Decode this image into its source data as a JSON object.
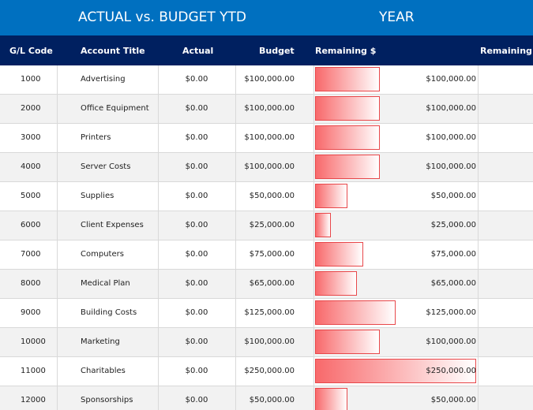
{
  "header": {
    "title": "ACTUAL vs. BUDGET YTD",
    "period": "YEAR"
  },
  "table": {
    "columns": [
      "G/L Code",
      "Account Title",
      "Actual",
      "Budget",
      "Remaining $",
      "Remaining %"
    ],
    "rows": [
      [
        "1000",
        "Advertising",
        "$0.00",
        "$100,000.00"
      ],
      [
        "2000",
        "Office Equipment",
        "$0.00",
        "$100,000.00"
      ],
      [
        "3000",
        "Printers",
        "$0.00",
        "$100,000.00"
      ],
      [
        "4000",
        "Server Costs",
        "$0.00",
        "$100,000.00"
      ],
      [
        "5000",
        "Supplies",
        "$0.00",
        "$50,000.00"
      ],
      [
        "6000",
        "Client Expenses",
        "$0.00",
        "$25,000.00"
      ],
      [
        "7000",
        "Computers",
        "$0.00",
        "$75,000.00"
      ],
      [
        "8000",
        "Medical Plan",
        "$0.00",
        "$65,000.00"
      ],
      [
        "9000",
        "Building Costs",
        "$0.00",
        "$125,000.00"
      ],
      [
        "10000",
        "Marketing",
        "$0.00",
        "$100,000.00"
      ],
      [
        "11000",
        "Charitables",
        "$0.00",
        "$250,000.00"
      ],
      [
        "12000",
        "Sponsorships",
        "$0.00",
        "$50,000.00"
      ]
    ],
    "remaining": {
      "values": [
        100000,
        100000,
        100000,
        100000,
        50000,
        25000,
        75000,
        65000,
        125000,
        100000,
        250000,
        50000
      ],
      "value_labels": [
        "$100,000.00",
        "$100,000.00",
        "$100,000.00",
        "$100,000.00",
        "$50,000.00",
        "$25,000.00",
        "$75,000.00",
        "$65,000.00",
        "$125,000.00",
        "$100,000.00",
        "$250,000.00",
        "$50,000.00"
      ]
    }
  }
}
